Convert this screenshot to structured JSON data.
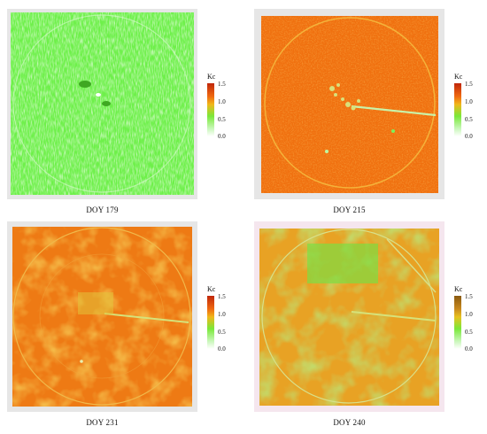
{
  "panels": [
    {
      "caption": "DOY 179",
      "legend": {
        "title": "Kc",
        "ticks": [
          "1.5",
          "1.0",
          "0.5",
          "0.0"
        ]
      }
    },
    {
      "caption": "DOY 215",
      "legend": {
        "title": "Kc",
        "ticks": [
          "1.5",
          "1.0",
          "0.5",
          "0.0"
        ]
      }
    },
    {
      "caption": "DOY 231",
      "legend": {
        "title": "Kc",
        "ticks": [
          "1.5",
          "1.0",
          "0.5",
          "0.0"
        ]
      }
    },
    {
      "caption": "DOY 240",
      "legend": {
        "title": "Kc",
        "ticks": [
          "1.5",
          "1.0",
          "0.5",
          "0.0"
        ]
      }
    }
  ],
  "colors": {
    "kc_high": "#e84a0c",
    "kc_mid_high": "#f08a1e",
    "kc_mid": "#e8d21e",
    "kc_low": "#5fe83a",
    "kc_zero": "#ffffff",
    "frame": "#e6e6e6"
  }
}
